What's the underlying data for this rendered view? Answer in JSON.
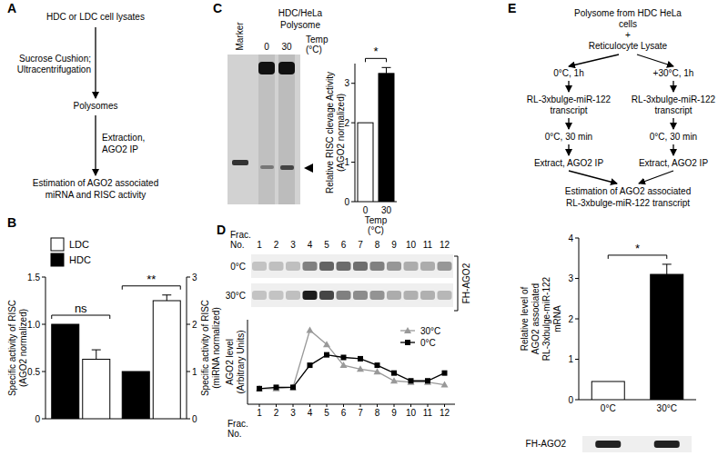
{
  "diagram_a": {
    "label": "A",
    "nodes": [
      [
        "HDC or LDC cell lysates"
      ],
      [
        "Polysomes"
      ],
      [
        "Estimation of AGO2 associated",
        "miRNA and RISC activity"
      ]
    ],
    "edges": [
      [
        "Sucrose Cushion;",
        "Ultracentrifugation"
      ],
      [
        "Extraction,",
        "AGO2 IP"
      ]
    ]
  },
  "gel_c": {
    "label": "C",
    "title": [
      "HDC/HeLa",
      "Polysome"
    ],
    "lanes": [
      "Marker",
      "0",
      "30"
    ],
    "lane_axis": [
      "Temp",
      "(°C)"
    ]
  },
  "diagram_e": {
    "label": "E",
    "top": [
      "Polysome from HDC HeLa",
      "cells",
      "+",
      "Reticulocyte Lysate"
    ],
    "branches": [
      [
        [
          "0°C, 1h"
        ],
        [
          "RL-3xbulge-miR-122",
          "transcript"
        ],
        [
          "0°C, 30 min"
        ],
        [
          "Extract, AGO2 IP"
        ]
      ],
      [
        [
          "+30°C, 1h"
        ],
        [
          "RL-3xbulge-miR-122",
          "transcript"
        ],
        [
          "0°C, 30 min"
        ],
        [
          "Extract, AGO2 IP"
        ]
      ]
    ],
    "bottom": [
      "Estimation of AGO2 associated",
      "RL-3xbulge-miR-122 transcript"
    ]
  },
  "chart_data": [
    {
      "panel": "B",
      "type": "bar",
      "categories": [
        null,
        null
      ],
      "ylabel": [
        "Specific activity of RISC",
        "(AGO2 normalized)"
      ],
      "y2label": [
        "Specific activity of RISC",
        "(miRNA normalized)"
      ],
      "ylim": [
        0,
        1.5
      ],
      "yticks": [
        0,
        0.5,
        {
          "value": 1,
          "label": "1.0"
        },
        1.5
      ],
      "y2lim": [
        0,
        3
      ],
      "y2ticks": [
        0,
        1,
        2,
        3
      ],
      "legend": "upper left",
      "series": [
        {
          "name": "HDC",
          "color": "#000000",
          "values": [
            1.0,
            null
          ],
          "errors": [
            null,
            null
          ]
        },
        {
          "name": "LDC",
          "color": "#ffffff",
          "values": [
            0.63,
            null
          ],
          "errors": [
            0.1,
            null
          ]
        },
        {
          "name": "HDC",
          "color": "#000000",
          "axis": "y2",
          "values": [
            null,
            1.0
          ],
          "errors": [
            null,
            null
          ]
        },
        {
          "name": "LDC",
          "color": "#ffffff",
          "axis": "y2",
          "values": [
            null,
            2.5
          ],
          "errors": [
            null,
            0.12
          ]
        }
      ],
      "annotations": [
        {
          "text": "ns",
          "category": 0
        },
        {
          "text": "**",
          "category": 1
        }
      ]
    },
    {
      "panel": "C",
      "type": "bar",
      "categories": [
        "0",
        "30"
      ],
      "xlabel": [
        "Temp",
        "(°C)"
      ],
      "ylabel": [
        "Relative RISC clevage Activity",
        "(AGO2 normalized)"
      ],
      "ylim": [
        0,
        3.5
      ],
      "yticks": [
        0,
        1,
        2,
        3
      ],
      "values": [
        2.0,
        3.25
      ],
      "errors": [
        null,
        0.15
      ],
      "colors": [
        "#ffffff",
        "#000000"
      ],
      "annotations": [
        {
          "text": "*",
          "span": [
            0,
            1
          ]
        }
      ]
    },
    {
      "panel": "D",
      "type": "line",
      "categories": [
        "1",
        "2",
        "3",
        "4",
        "5",
        "6",
        "7",
        "8",
        "9",
        "10",
        "11",
        "12"
      ],
      "xlabel": [
        "Frac.",
        "No."
      ],
      "ylabel": [
        "AGO2 level",
        "(Arbitrary Units)"
      ],
      "ylim": [
        20,
        85
      ],
      "tick_labels": "x",
      "legend": "upper right",
      "series": [
        {
          "name": "30°C",
          "color": "#999999",
          "marker": "triangle",
          "values": [
            32,
            32,
            33,
            77,
            66,
            50,
            47,
            45,
            38,
            37,
            37,
            35
          ]
        },
        {
          "name": "0°C",
          "color": "#000000",
          "marker": "square",
          "values": [
            32,
            33,
            33,
            50,
            58,
            56,
            55,
            50,
            44,
            38,
            38,
            44
          ]
        }
      ],
      "blot_rows": [
        "0°C",
        "30°C"
      ],
      "blot_label": "FH-AGO2"
    },
    {
      "panel": "E",
      "type": "bar",
      "categories": [
        "0°C",
        "30°C"
      ],
      "ylabel": [
        "Relative level of",
        "AGO2 associated",
        "RL-3xbulge-miR-122",
        "mRNA"
      ],
      "ylim": [
        0,
        4
      ],
      "yticks": [
        0,
        1,
        2,
        3,
        4
      ],
      "values": [
        0.45,
        3.1
      ],
      "errors": [
        null,
        0.25
      ],
      "colors": [
        "#ffffff",
        "#000000"
      ],
      "annotations": [
        {
          "text": "*",
          "span": [
            0,
            1
          ]
        }
      ],
      "blot_label": "FH-AGO2"
    }
  ]
}
